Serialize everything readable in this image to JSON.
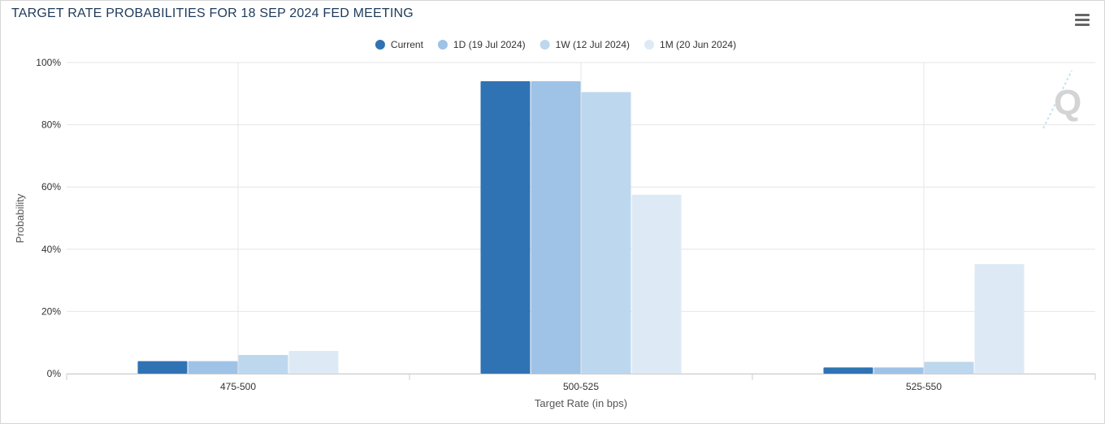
{
  "header": {
    "title": "TARGET RATE PROBABILITIES FOR 18 SEP 2024 FED MEETING",
    "menu_icon": "hamburger-menu-icon"
  },
  "watermark": {
    "letter": "Q",
    "icon": "cme-q-logo-icon"
  },
  "colors": {
    "Current": "#2f73b4",
    "1D (19 Jul 2024)": "#9fc2e7",
    "1W (12 Jul 2024)": "#bdd7ee",
    "1M (20 Jun 2024)": "#ddeaf6",
    "grid": "#e6e6e6",
    "axis": "#cccccc"
  },
  "chart_data": {
    "type": "bar",
    "title": "TARGET RATE PROBABILITIES FOR 18 SEP 2024 FED MEETING",
    "xlabel": "Target Rate (in bps)",
    "ylabel": "Probability",
    "categories": [
      "475-500",
      "500-525",
      "525-550"
    ],
    "yticks": [
      "0%",
      "20%",
      "40%",
      "60%",
      "80%",
      "100%"
    ],
    "ylim": [
      0,
      100
    ],
    "legend_position": "top-center",
    "grid": true,
    "series": [
      {
        "name": "Current",
        "values": [
          4.0,
          94.0,
          2.0
        ]
      },
      {
        "name": "1D (19 Jul 2024)",
        "values": [
          4.0,
          94.0,
          2.0
        ]
      },
      {
        "name": "1W (12 Jul 2024)",
        "values": [
          6.0,
          90.5,
          3.8
        ]
      },
      {
        "name": "1M (20 Jun 2024)",
        "values": [
          7.3,
          57.5,
          35.2
        ]
      }
    ]
  }
}
